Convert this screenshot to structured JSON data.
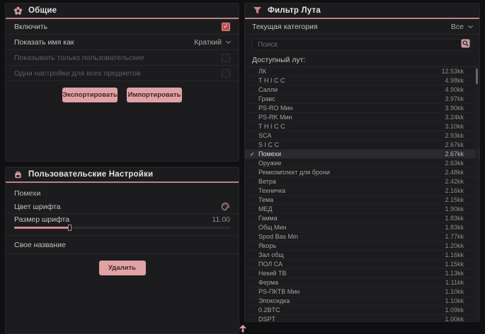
{
  "colors": {
    "accent_pink": "#d99a9d",
    "header_underline": "#b98287",
    "button_bg": "#e0a2a4",
    "checkbox_checked": "#c04d53",
    "panel_bg": "#1c1c1e",
    "page_bg": "#101012"
  },
  "icons": {
    "general": "gear-icon",
    "user_settings": "backpack-icon",
    "loot_filter": "funnel-icon",
    "font_color": "palette-icon",
    "search": "magnifier-icon",
    "selected_row": "check-icon",
    "dropdown": "chevron-down-icon"
  },
  "general_panel": {
    "title": "Общие",
    "enable_label": "Включить",
    "enable_checked": true,
    "display_name_label": "Показать имя как",
    "display_name_value": "Краткий",
    "only_custom_label": "Показывать только пользовательские",
    "only_custom_checked": false,
    "same_settings_label": "Одни настройки для всех предметов",
    "same_settings_checked": false,
    "export_button": "Экспортировать",
    "import_button": "Импортировать"
  },
  "user_settings_panel": {
    "title": "Пользовательские Настройки",
    "group_label": "Помехи",
    "font_color_label": "Цвет шрифта",
    "font_size_label": "Размер шрифта",
    "font_size_value": "11.00",
    "font_size_percent": 26,
    "custom_name_label": "Свое название",
    "custom_name_value": "",
    "delete_button": "Удалить"
  },
  "loot_filter_panel": {
    "title": "Фильтр Лута",
    "category_label": "Текущая категория",
    "category_value": "Все",
    "search_placeholder": "Поиск",
    "list_label": "Доступный лут:",
    "items": [
      {
        "name": "ЛК",
        "value": "12.53kk"
      },
      {
        "name": "Т Н I С С",
        "value": "4.98kk"
      },
      {
        "name": "Салли",
        "value": "4.90kk"
      },
      {
        "name": "Гравс",
        "value": "3.97kk"
      },
      {
        "name": "PS-RO Мин",
        "value": "3.90kk"
      },
      {
        "name": "PS-RK Мин",
        "value": "3.24kk"
      },
      {
        "name": "Т Н I С С",
        "value": "3.10kk"
      },
      {
        "name": "SCA",
        "value": "2.93kk"
      },
      {
        "name": "S I С С",
        "value": "2.67kk"
      },
      {
        "name": "Помехи",
        "value": "2.67kk",
        "selected": true
      },
      {
        "name": "Оружие",
        "value": "2.63kk"
      },
      {
        "name": "Ремкомплект для брони",
        "value": "2.48kk"
      },
      {
        "name": "Ветра",
        "value": "2.42kk"
      },
      {
        "name": "Техничка",
        "value": "2.16kk"
      },
      {
        "name": "Тема",
        "value": "2.15kk"
      },
      {
        "name": "МЕД",
        "value": "1.90kk"
      },
      {
        "name": "Гамма",
        "value": "1.83kk"
      },
      {
        "name": "Общ Мин",
        "value": "1.83kk"
      },
      {
        "name": "Spod Bas Min",
        "value": "1.77kk"
      },
      {
        "name": "Якорь",
        "value": "1.20kk"
      },
      {
        "name": "Зал общ",
        "value": "1.16kk"
      },
      {
        "name": "ПОЛ СА",
        "value": "1.15kk"
      },
      {
        "name": "Некий ТВ",
        "value": "1.13kk"
      },
      {
        "name": "Ферма",
        "value": "1.11kk"
      },
      {
        "name": "PS-ПКТВ Мин",
        "value": "1.10kk"
      },
      {
        "name": "Эпоксидка",
        "value": "1.10kk"
      },
      {
        "name": "0.2BTC",
        "value": "1.09kk"
      },
      {
        "name": "DSPT",
        "value": "1.00kk"
      }
    ]
  }
}
